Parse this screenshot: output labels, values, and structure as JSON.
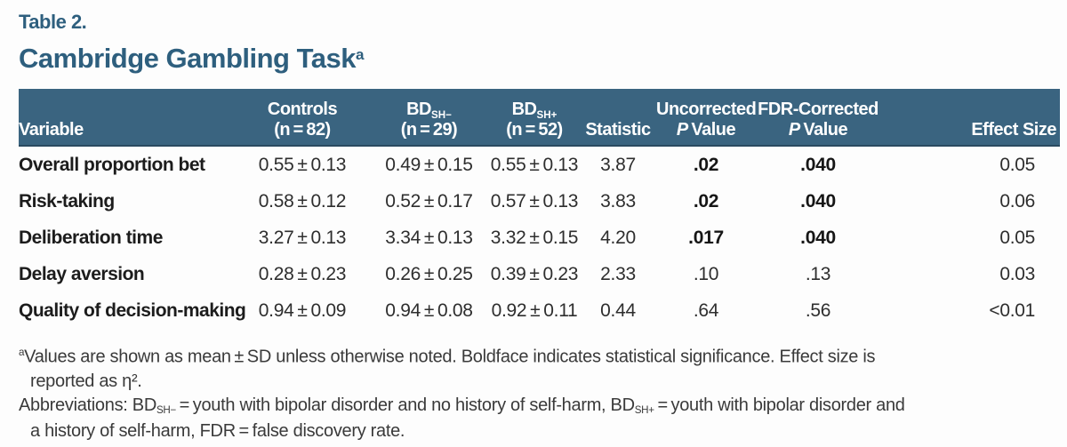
{
  "title": {
    "label": "Table 2.",
    "main": "Cambridge Gambling Task",
    "superscript": "a"
  },
  "colors": {
    "header_band": "#3A6480",
    "title_blue": "#2E5F7E",
    "bottom_rule": "#3E6787",
    "body_text": "#2e2e2e"
  },
  "table": {
    "header": {
      "variable": "Variable",
      "controls": {
        "line1": "Controls",
        "line2": "(n = 82)"
      },
      "bd_sh_minus": {
        "main": "BD",
        "sub": "SH−",
        "line2": "(n = 29)"
      },
      "bd_sh_plus": {
        "main": "BD",
        "sub": "SH+",
        "line2": "(n = 52)"
      },
      "statistic": "Statistic",
      "uncorrected": {
        "line1": "Uncorrected",
        "p": "P",
        "value": "Value"
      },
      "fdr": {
        "line1": "FDR-Corrected",
        "p": "P",
        "value": "Value"
      },
      "effect_size": "Effect Size"
    },
    "rows": [
      {
        "variable": "Overall proportion bet",
        "controls": "0.55 ± 0.13",
        "bd_sh_minus": "0.49 ± 0.15",
        "bd_sh_plus": "0.55 ± 0.13",
        "statistic": "3.87",
        "p_uncorrected": ".02",
        "p_fdr": ".040",
        "effect_size": "0.05",
        "significant": true
      },
      {
        "variable": "Risk-taking",
        "controls": "0.58 ± 0.12",
        "bd_sh_minus": "0.52 ± 0.17",
        "bd_sh_plus": "0.57 ± 0.13",
        "statistic": "3.83",
        "p_uncorrected": ".02",
        "p_fdr": ".040",
        "effect_size": "0.06",
        "significant": true
      },
      {
        "variable": "Deliberation time",
        "controls": "3.27 ± 0.13",
        "bd_sh_minus": "3.34 ± 0.13",
        "bd_sh_plus": "3.32 ± 0.15",
        "statistic": "4.20",
        "p_uncorrected": ".017",
        "p_fdr": ".040",
        "effect_size": "0.05",
        "significant": true
      },
      {
        "variable": "Delay aversion",
        "controls": "0.28 ± 0.23",
        "bd_sh_minus": "0.26 ± 0.25",
        "bd_sh_plus": "0.39 ± 0.23",
        "statistic": "2.33",
        "p_uncorrected": ".10",
        "p_fdr": ".13",
        "effect_size": "0.03",
        "significant": false
      },
      {
        "variable": "Quality of decision-making",
        "controls": "0.94 ± 0.09",
        "bd_sh_minus": "0.94 ± 0.08",
        "bd_sh_plus": "0.92 ± 0.11",
        "statistic": "0.44",
        "p_uncorrected": ".64",
        "p_fdr": ".56",
        "effect_size": "<0.01",
        "significant": false
      }
    ]
  },
  "footnotes": {
    "note_a": {
      "marker": "a",
      "line1": "Values are shown as mean ± SD unless otherwise noted. Boldface indicates statistical significance. Effect size is",
      "line2": "reported as η²."
    },
    "abbreviations": {
      "pre": "Abbreviations: BD",
      "sub1": "SH−",
      "mid": " = youth with bipolar disorder and no history of self-harm, BD",
      "sub2": "SH+",
      "end": " = youth with bipolar disorder and",
      "line2": "a history of self-harm, FDR = false discovery rate."
    }
  }
}
